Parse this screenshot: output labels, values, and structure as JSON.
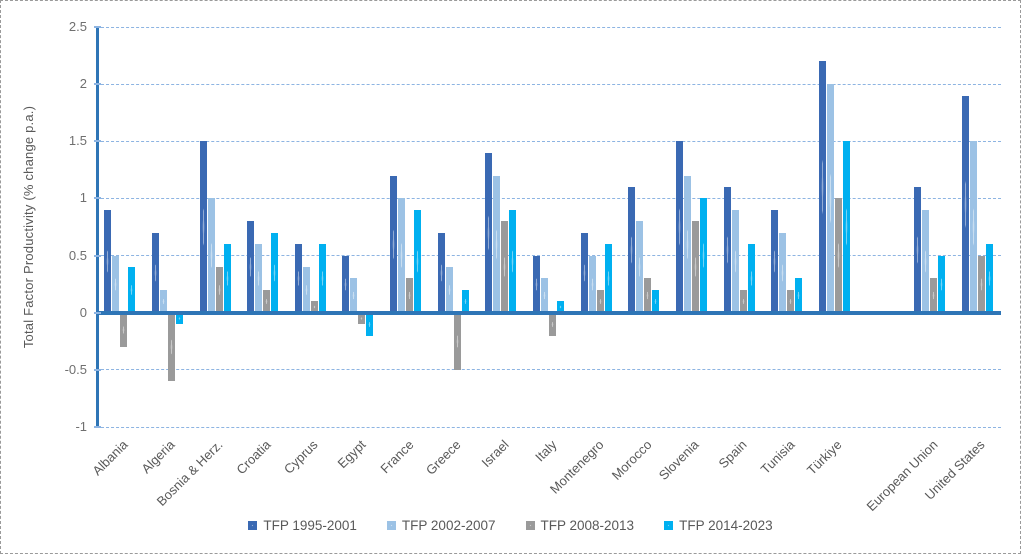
{
  "figure": {
    "frame_border_color": "#9a9a9a",
    "background": "#ffffff",
    "grid_color": "#8db4e2",
    "axis_color": "#2e75b6",
    "label_text_color": "#595959",
    "tick_text_color": "#6f6f6f"
  },
  "chart_data": {
    "type": "bar",
    "title": "",
    "xlabel": "",
    "ylabel": "Total Factor Productivity (% change p.a.)",
    "ylim": [
      -1,
      2.5
    ],
    "grid": "horizontal-dashed",
    "legend_position": "bottom",
    "yticks": [
      {
        "v": 2.5,
        "label": "2.5"
      },
      {
        "v": 2,
        "label": "2"
      },
      {
        "v": 1.5,
        "label": "1.5"
      },
      {
        "v": 1,
        "label": "1"
      },
      {
        "v": 0.5,
        "label": "0.5"
      },
      {
        "v": 0,
        "label": "0"
      },
      {
        "v": -0.5,
        "label": "-0.5"
      },
      {
        "v": -1,
        "label": "-1"
      }
    ],
    "categories": [
      "Albania",
      "Algeria",
      "Bosnia & Herz.",
      "Croatia",
      "Cyprus",
      "Egypt",
      "France",
      "Greece",
      "Israel",
      "Italy",
      "Montenegro",
      "Morocco",
      "Slovenia",
      "Spain",
      "Tunisia",
      "Türkiye",
      "",
      "European Union",
      "United States"
    ],
    "series": [
      {
        "name": "TFP 1995-2001",
        "color": "#3a69b3",
        "values": [
          0.9,
          0.7,
          1.5,
          0.8,
          0.6,
          0.5,
          1.2,
          0.7,
          1.4,
          0.5,
          0.7,
          1.1,
          1.5,
          1.1,
          0.9,
          2.2,
          null,
          1.1,
          1.9
        ]
      },
      {
        "name": "TFP 2002-2007",
        "color": "#9cc2e5",
        "values": [
          0.5,
          0.2,
          1.0,
          0.6,
          0.4,
          0.3,
          1.0,
          0.4,
          1.2,
          0.3,
          0.5,
          0.8,
          1.2,
          0.9,
          0.7,
          2.0,
          null,
          0.9,
          1.5
        ]
      },
      {
        "name": "TFP 2008-2013",
        "color": "#9a9a9a",
        "values": [
          -0.3,
          -0.6,
          0.4,
          0.2,
          0.1,
          -0.1,
          0.3,
          -0.5,
          0.8,
          -0.2,
          0.2,
          0.3,
          0.8,
          0.2,
          0.2,
          1.0,
          null,
          0.3,
          0.5
        ]
      },
      {
        "name": "TFP 2014-2023",
        "color": "#00b0f0",
        "values": [
          0.4,
          -0.1,
          0.6,
          0.7,
          0.6,
          -0.2,
          0.9,
          0.2,
          0.9,
          0.1,
          0.6,
          0.2,
          1.0,
          0.6,
          0.3,
          1.5,
          null,
          0.5,
          0.6
        ]
      }
    ]
  }
}
